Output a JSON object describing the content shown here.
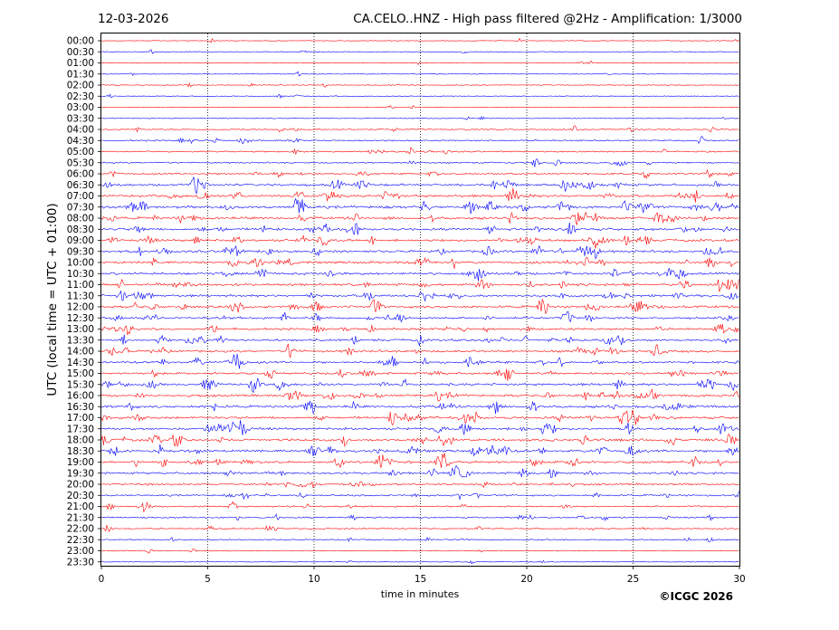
{
  "header": {
    "date": "12-03-2026",
    "title": "CA.CELO..HNZ - High pass filtered @2Hz - Amplification: 1/3000"
  },
  "footer": {
    "copyright": "©ICGC 2026"
  },
  "chart_data": {
    "type": "line",
    "xlabel": "time in minutes",
    "ylabel": "UTC (local time = UTC + 01:00)",
    "xlim": [
      0,
      30
    ],
    "xticks": [
      0,
      5,
      10,
      15,
      20,
      25,
      30
    ],
    "vertical_gridlines": [
      5,
      10,
      15,
      20,
      25
    ],
    "grid": true,
    "series_colors": [
      "#ff0000",
      "#0000ff"
    ],
    "rows": [
      {
        "label": "00:00",
        "activity": 0.1
      },
      {
        "label": "00:30",
        "activity": 0.1
      },
      {
        "label": "01:00",
        "activity": 0.1
      },
      {
        "label": "01:30",
        "activity": 0.1
      },
      {
        "label": "02:00",
        "activity": 0.12
      },
      {
        "label": "02:30",
        "activity": 0.12
      },
      {
        "label": "03:00",
        "activity": 0.08
      },
      {
        "label": "03:30",
        "activity": 0.1
      },
      {
        "label": "04:00",
        "activity": 0.35
      },
      {
        "label": "04:30",
        "activity": 0.4
      },
      {
        "label": "05:00",
        "activity": 0.4
      },
      {
        "label": "05:30",
        "activity": 0.4
      },
      {
        "label": "06:00",
        "activity": 0.55
      },
      {
        "label": "06:30",
        "activity": 0.75
      },
      {
        "label": "07:00",
        "activity": 0.85
      },
      {
        "label": "07:30",
        "activity": 0.9
      },
      {
        "label": "08:00",
        "activity": 0.85
      },
      {
        "label": "08:30",
        "activity": 0.85
      },
      {
        "label": "09:00",
        "activity": 0.85
      },
      {
        "label": "09:30",
        "activity": 0.8
      },
      {
        "label": "10:00",
        "activity": 0.8
      },
      {
        "label": "10:30",
        "activity": 0.8
      },
      {
        "label": "11:00",
        "activity": 0.8
      },
      {
        "label": "11:30",
        "activity": 0.8
      },
      {
        "label": "12:00",
        "activity": 0.8
      },
      {
        "label": "12:30",
        "activity": 0.75
      },
      {
        "label": "13:00",
        "activity": 0.7
      },
      {
        "label": "13:30",
        "activity": 0.75
      },
      {
        "label": "14:00",
        "activity": 0.75
      },
      {
        "label": "14:30",
        "activity": 0.75
      },
      {
        "label": "15:00",
        "activity": 0.7
      },
      {
        "label": "15:30",
        "activity": 0.8
      },
      {
        "label": "16:00",
        "activity": 0.8
      },
      {
        "label": "16:30",
        "activity": 0.85
      },
      {
        "label": "17:00",
        "activity": 0.85
      },
      {
        "label": "17:30",
        "activity": 0.85
      },
      {
        "label": "18:00",
        "activity": 0.85
      },
      {
        "label": "18:30",
        "activity": 0.85
      },
      {
        "label": "19:00",
        "activity": 0.85
      },
      {
        "label": "19:30",
        "activity": 0.7
      },
      {
        "label": "20:00",
        "activity": 0.6
      },
      {
        "label": "20:30",
        "activity": 0.5
      },
      {
        "label": "21:00",
        "activity": 0.45
      },
      {
        "label": "21:30",
        "activity": 0.45
      },
      {
        "label": "22:00",
        "activity": 0.35
      },
      {
        "label": "22:30",
        "activity": 0.25
      },
      {
        "label": "23:00",
        "activity": 0.15
      },
      {
        "label": "23:30",
        "activity": 0.1
      }
    ]
  }
}
